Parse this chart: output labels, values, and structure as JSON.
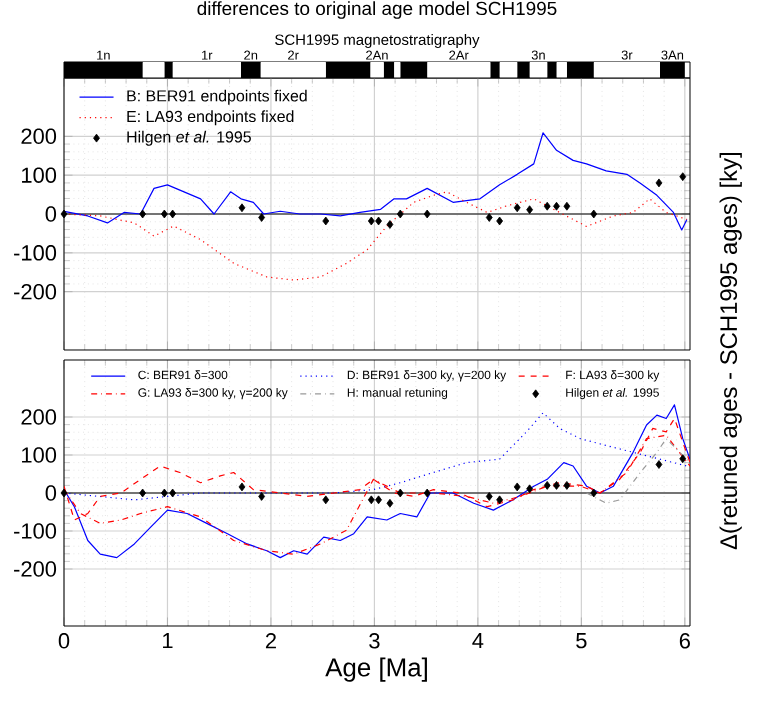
{
  "chart_data": [
    {
      "type": "bar",
      "title": "differences to original age model SCH1995",
      "subtitle": "SCH1995 magnetostratigraphy",
      "orientation": "horizontal",
      "stacked": true,
      "categories": [
        null
      ],
      "xlim": [
        0,
        6.05
      ],
      "tick_labels": false,
      "series": [
        {
          "name": "1n",
          "color": "#000000",
          "values": [
            0.76
          ]
        },
        {
          "color": "#ffffff",
          "values": [
            0.21
          ]
        },
        {
          "color": "#000000",
          "values": [
            0.08
          ]
        },
        {
          "name": "1r",
          "color": "#ffffff",
          "values": [
            0.66
          ]
        },
        {
          "name": "2n",
          "color": "#000000",
          "values": [
            0.19
          ]
        },
        {
          "name": "2r",
          "color": "#ffffff",
          "values": [
            0.63
          ]
        },
        {
          "color": "#000000",
          "values": [
            0.43
          ]
        },
        {
          "name": "2An",
          "color": "#ffffff",
          "values": [
            0.13
          ]
        },
        {
          "color": "#000000",
          "values": [
            0.1
          ]
        },
        {
          "color": "#ffffff",
          "values": [
            0.06
          ]
        },
        {
          "color": "#000000",
          "values": [
            0.26
          ]
        },
        {
          "name": "2Ar",
          "color": "#ffffff",
          "values": [
            0.61
          ]
        },
        {
          "color": "#000000",
          "values": [
            0.09
          ]
        },
        {
          "color": "#ffffff",
          "values": [
            0.17
          ]
        },
        {
          "color": "#000000",
          "values": [
            0.12
          ]
        },
        {
          "name": "3n",
          "color": "#ffffff",
          "values": [
            0.17
          ]
        },
        {
          "color": "#000000",
          "values": [
            0.09
          ]
        },
        {
          "color": "#ffffff",
          "values": [
            0.1
          ]
        },
        {
          "color": "#000000",
          "values": [
            0.26
          ]
        },
        {
          "name": "3r",
          "color": "#ffffff",
          "values": [
            0.64
          ]
        },
        {
          "name": "3An",
          "color": "#000000",
          "values": [
            0.24
          ]
        }
      ]
    },
    {
      "type": "line",
      "xlim": [
        0,
        6.05
      ],
      "xticks": [
        0,
        1,
        2,
        3,
        4,
        5,
        6
      ],
      "ylim": [
        -350,
        350
      ],
      "yticks": [
        -200,
        -100,
        0,
        100,
        200
      ],
      "tick_labels": "y",
      "grid": true,
      "legend": "top left",
      "ref_lines": [
        {
          "axis": "y",
          "value": 0,
          "color": "#000000"
        }
      ],
      "series": [
        {
          "name": "B: BER91 endpoints fixed",
          "color": "#0000ff",
          "line_style": "solid",
          "marker": "none",
          "x": [
            0,
            0.23,
            0.42,
            0.58,
            0.74,
            0.87,
            1.0,
            1.16,
            1.32,
            1.45,
            1.61,
            1.71,
            1.83,
            1.93,
            2.09,
            2.28,
            2.48,
            2.67,
            2.86,
            3.06,
            3.19,
            3.31,
            3.51,
            3.76,
            4.02,
            4.21,
            4.38,
            4.54,
            4.63,
            4.76,
            4.92,
            5.05,
            5.24,
            5.44,
            5.57,
            5.73,
            5.89,
            5.97,
            6.02
          ],
          "values": [
            7,
            -5,
            -23,
            4,
            0,
            66,
            75,
            57,
            39,
            0,
            57,
            39,
            30,
            0,
            7,
            0,
            0,
            -5,
            4,
            12,
            39,
            39,
            66,
            30,
            39,
            75,
            102,
            129,
            209,
            164,
            138,
            129,
            111,
            102,
            79,
            48,
            4,
            -41,
            -14
          ]
        },
        {
          "name": "E: LA93 endpoints fixed",
          "color": "#ff0000",
          "line_style": "dotted",
          "marker": "none",
          "x": [
            0,
            0.35,
            0.68,
            0.87,
            1.06,
            1.32,
            1.64,
            1.96,
            2.22,
            2.48,
            2.73,
            2.93,
            3.12,
            3.38,
            3.57,
            3.7,
            3.89,
            4.09,
            4.28,
            4.54,
            4.79,
            5.05,
            5.31,
            5.5,
            5.66,
            5.82,
            6.02
          ],
          "values": [
            0,
            -5,
            -23,
            -57,
            -31,
            -66,
            -127,
            -162,
            -170,
            -162,
            -127,
            -92,
            -31,
            30,
            48,
            57,
            30,
            4,
            21,
            39,
            4,
            -32,
            -5,
            4,
            39,
            4,
            -14
          ]
        },
        {
          "name": "Hilgen *et al.* 1995",
          "type": "scatter",
          "color": "#000000",
          "marker": "diamond",
          "x": [
            0,
            0.76,
            0.97,
            1.05,
            1.72,
            1.91,
            2.53,
            2.97,
            3.04,
            3.15,
            3.25,
            3.51,
            4.11,
            4.21,
            4.38,
            4.5,
            4.67,
            4.76,
            4.86,
            5.12,
            5.75,
            5.98
          ],
          "values": [
            0,
            0,
            0,
            0,
            16,
            -9,
            -18,
            -18,
            -18,
            -27,
            0,
            0,
            -9,
            -18,
            16,
            11,
            20,
            20,
            20,
            0,
            80,
            96
          ]
        }
      ]
    },
    {
      "type": "line",
      "xlabel": "Age [Ma]",
      "ylabel": "Δ(retuned ages - SCH1995 ages) [ky]",
      "xlim": [
        0,
        6.05
      ],
      "xticks": [
        0,
        1,
        2,
        3,
        4,
        5,
        6
      ],
      "ylim": [
        -350,
        350
      ],
      "yticks": [
        -200,
        -100,
        0,
        100,
        200
      ],
      "grid": true,
      "legend": "top",
      "ref_lines": [
        {
          "axis": "y",
          "value": 0,
          "color": "#000000"
        }
      ],
      "series": [
        {
          "name": "C: BER91 δ=300",
          "color": "#0000ff",
          "line_style": "solid",
          "marker": "none",
          "x": [
            0,
            0.1,
            0.23,
            0.35,
            0.51,
            0.68,
            0.84,
            1.0,
            1.19,
            1.38,
            1.58,
            1.77,
            1.96,
            2.09,
            2.22,
            2.35,
            2.51,
            2.67,
            2.8,
            2.93,
            3.12,
            3.25,
            3.41,
            3.54,
            3.76,
            3.96,
            4.15,
            4.34,
            4.54,
            4.67,
            4.83,
            4.92,
            5.05,
            5.18,
            5.31,
            5.5,
            5.63,
            5.73,
            5.82,
            5.9,
            5.98,
            6.05
          ],
          "values": [
            9,
            -36,
            -125,
            -161,
            -170,
            -134,
            -89,
            -45,
            -54,
            -80,
            -107,
            -134,
            -152,
            -170,
            -152,
            -161,
            -116,
            -125,
            -107,
            -63,
            -71,
            -54,
            -63,
            0,
            0,
            -27,
            -45,
            -18,
            18,
            36,
            80,
            71,
            18,
            0,
            18,
            107,
            179,
            205,
            196,
            232,
            143,
            89
          ]
        },
        {
          "name": "D: BER91 δ=300 ky, γ=200 ky",
          "color": "#0000ff",
          "line_style": "dotted",
          "marker": "none",
          "x": [
            0,
            0.68,
            1.32,
            1.96,
            2.61,
            2.99,
            3.25,
            3.57,
            3.89,
            4.21,
            4.47,
            4.63,
            4.79,
            4.99,
            5.24,
            5.5,
            5.76,
            6.02
          ],
          "values": [
            0,
            -18,
            0,
            0,
            0,
            9,
            27,
            54,
            80,
            89,
            161,
            211,
            170,
            143,
            125,
            107,
            89,
            71
          ]
        },
        {
          "name": "F: LA93    δ=300 ky",
          "color": "#ff0000",
          "line_style": "dashed",
          "marker": "none",
          "x": [
            0,
            0.1,
            0.23,
            0.35,
            0.55,
            0.74,
            0.93,
            1.12,
            1.32,
            1.51,
            1.64,
            1.83,
            2.09,
            2.35,
            2.61,
            2.86,
            2.99,
            3.19,
            3.38,
            3.57,
            3.83,
            4.09,
            4.34,
            4.54,
            4.79,
            5.05,
            5.18,
            5.37,
            5.57,
            5.69,
            5.82,
            5.9,
            6.05
          ],
          "values": [
            18,
            -71,
            -54,
            -9,
            0,
            36,
            71,
            54,
            27,
            45,
            54,
            9,
            0,
            -9,
            0,
            9,
            36,
            0,
            -9,
            9,
            0,
            -36,
            -18,
            9,
            27,
            18,
            0,
            36,
            107,
            170,
            161,
            196,
            80
          ]
        },
        {
          "name": "G: LA93    δ=300 ky, γ=200 ky",
          "color": "#ff0000",
          "line_style": "dashdot",
          "marker": "none",
          "x": [
            0,
            0.16,
            0.35,
            0.55,
            0.74,
            1.0,
            1.32,
            1.64,
            1.96,
            2.22,
            2.48,
            2.73,
            2.99,
            3.25,
            3.57,
            3.89,
            4.15,
            4.41,
            4.67,
            4.99,
            5.18,
            5.44,
            5.63,
            5.82,
            6.05
          ],
          "values": [
            9,
            -54,
            -80,
            -71,
            -54,
            -36,
            -63,
            -125,
            -152,
            -161,
            -134,
            -98,
            36,
            0,
            0,
            -9,
            -27,
            -9,
            18,
            18,
            0,
            54,
            143,
            152,
            71
          ]
        },
        {
          "name": "H: manual retuning",
          "color": "#999999",
          "line_style": "dashdot",
          "marker": "none",
          "x": [
            5.05,
            5.24,
            5.37,
            5.57,
            5.73,
            5.82,
            6.05
          ],
          "values": [
            0,
            -27,
            -18,
            54,
            107,
            143,
            80
          ]
        },
        {
          "name": "Hilgen *et al.* 1995",
          "type": "scatter",
          "color": "#000000",
          "marker": "diamond",
          "x": [
            0,
            0.76,
            0.97,
            1.05,
            1.72,
            1.91,
            2.53,
            2.97,
            3.04,
            3.15,
            3.25,
            3.51,
            4.11,
            4.21,
            4.38,
            4.5,
            4.67,
            4.76,
            4.86,
            5.12,
            5.75,
            5.98
          ],
          "values": [
            0,
            0,
            0,
            0,
            16,
            -9,
            -18,
            -18,
            -18,
            -27,
            0,
            0,
            -9,
            -18,
            16,
            11,
            20,
            20,
            20,
            0,
            75,
            90
          ]
        }
      ]
    }
  ]
}
